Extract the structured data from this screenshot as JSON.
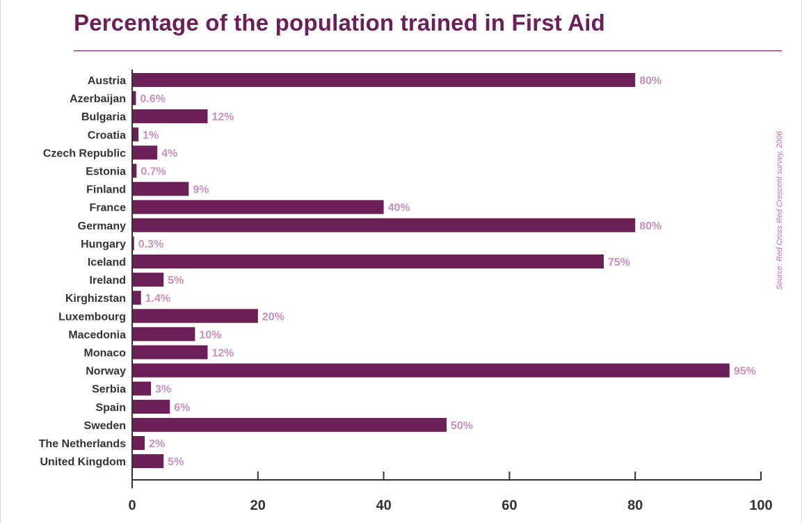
{
  "chart_data": {
    "type": "bar",
    "orientation": "horizontal",
    "title": "Percentage of the population trained in First Aid",
    "source": "Source: Red Cross Red Crescent survey, 2006",
    "categories": [
      "Austria",
      "Azerbaijan",
      "Bulgaria",
      "Croatia",
      "Czech Republic",
      "Estonia",
      "Finland",
      "France",
      "Germany",
      "Hungary",
      "Iceland",
      "Ireland",
      "Kirghizstan",
      "Luxembourg",
      "Macedonia",
      "Monaco",
      "Norway",
      "Serbia",
      "Spain",
      "Sweden",
      "The Netherlands",
      "United Kingdom"
    ],
    "values": [
      80,
      0.6,
      12,
      1,
      4,
      0.7,
      9,
      40,
      80,
      0.3,
      75,
      5,
      1.4,
      20,
      10,
      12,
      95,
      3,
      6,
      50,
      2,
      5
    ],
    "value_labels": [
      "80%",
      "0.6%",
      "12%",
      "1%",
      "4%",
      "0.7%",
      "9%",
      "40%",
      "80%",
      "0.3%",
      "75%",
      "5%",
      "1.4%",
      "20%",
      "10%",
      "12%",
      "95%",
      "3%",
      "6%",
      "50%",
      "2%",
      "5%"
    ],
    "xlim": [
      0,
      100
    ],
    "xticks": [
      "0",
      "20",
      "40",
      "60",
      "80",
      "100"
    ],
    "xlabel": "",
    "ylabel": "",
    "grid": false,
    "legend": "none",
    "colors": {
      "title": "#6b1f57",
      "bar": "#6b1f57",
      "value_label": "#c890bc",
      "source": "#c56bb5",
      "rule": "#a7669a"
    }
  }
}
